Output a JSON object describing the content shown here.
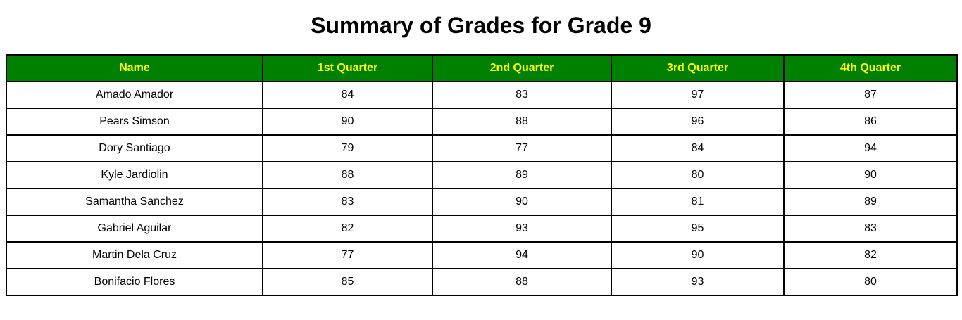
{
  "title": "Summary of Grades for Grade 9",
  "table": {
    "headers": [
      "Name",
      "1st Quarter",
      "2nd Quarter",
      "3rd Quarter",
      "4th Quarter"
    ],
    "rows": [
      [
        "Amado Amador",
        "84",
        "83",
        "97",
        "87"
      ],
      [
        "Pears Simson",
        "90",
        "88",
        "96",
        "86"
      ],
      [
        "Dory Santiago",
        "79",
        "77",
        "84",
        "94"
      ],
      [
        "Kyle Jardiolin",
        "88",
        "89",
        "80",
        "90"
      ],
      [
        "Samantha Sanchez",
        "83",
        "90",
        "81",
        "89"
      ],
      [
        "Gabriel Aguilar",
        "82",
        "93",
        "95",
        "83"
      ],
      [
        "Martin Dela Cruz",
        "77",
        "94",
        "90",
        "82"
      ],
      [
        "Bonifacio Flores",
        "85",
        "88",
        "93",
        "80"
      ]
    ]
  },
  "colors": {
    "header_background": "#008000",
    "header_text": "#ffff00",
    "border": "#000000"
  }
}
